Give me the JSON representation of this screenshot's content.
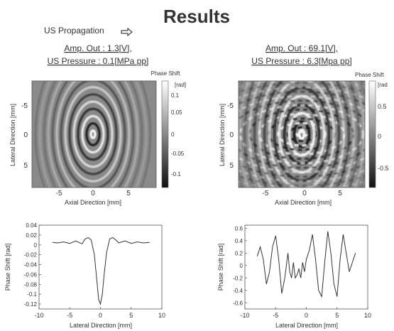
{
  "title": "Results",
  "propagation_label": "US Propagation",
  "panels": [
    {
      "amp_label": "Amp. Out : 1.3[V],",
      "pressure_label": "US Pressure : 0.1[MPa pp]",
      "colorbar": {
        "title": "Phase Shift",
        "unit": "[rad]",
        "ticks": [
          "0.1",
          "0.05",
          "0",
          "-0.05",
          "-0.1"
        ],
        "values": [
          0.1,
          0.05,
          0,
          -0.05,
          -0.1
        ]
      },
      "map": {
        "xlabel": "Axial Direction [mm]",
        "ylabel": "Lateral Direction [mm]",
        "xticks": [
          "-5",
          "0",
          "5"
        ],
        "yticks": [
          "-5",
          "0",
          "5"
        ]
      }
    },
    {
      "amp_label": "Amp. Out : 69.1[V],",
      "pressure_label": "US Pressure : 6.3[Mpa pp]",
      "colorbar": {
        "title": "Phase Shift",
        "unit": "[rad",
        "ticks": [
          "0.5",
          "0",
          "-0.5"
        ],
        "values": [
          0.5,
          0,
          -0.5
        ]
      },
      "map": {
        "xlabel": "Axial Direction [mm]",
        "ylabel": "Lateral Direction [mm]",
        "xticks": [
          "-5",
          "0",
          "5"
        ],
        "yticks": [
          "-5",
          "0",
          "5"
        ]
      }
    }
  ],
  "chart_data": [
    {
      "type": "line",
      "title": "",
      "xlabel": "Lateral Direction [mm]",
      "ylabel": "Phase Shift [rad]",
      "xlim": [
        -10,
        10
      ],
      "ylim": [
        -0.13,
        0.04
      ],
      "xticks": [
        "-10",
        "-5",
        "0",
        "5",
        "10"
      ],
      "yticks": [
        "0.04",
        "0.02",
        "0",
        "-0.02",
        "-0.04",
        "-0.06",
        "-0.08",
        "-0.1",
        "-0.12"
      ],
      "x": [
        -7.8,
        -7,
        -6,
        -5,
        -4,
        -3,
        -2.5,
        -2,
        -1.5,
        -1,
        -0.6,
        -0.3,
        0,
        0.3,
        0.6,
        1,
        1.5,
        2,
        2.5,
        3,
        4,
        5,
        6,
        7,
        8
      ],
      "y": [
        0.005,
        0.004,
        0.006,
        0.003,
        0.008,
        0.002,
        0.012,
        0.015,
        0.01,
        -0.02,
        -0.07,
        -0.11,
        -0.12,
        -0.1,
        -0.06,
        -0.015,
        0.012,
        0.015,
        0.01,
        0.004,
        0.008,
        0.003,
        0.006,
        0.004,
        0.005
      ]
    },
    {
      "type": "line",
      "title": "",
      "xlabel": "Lateral Direction [mm]",
      "ylabel": "Phase Shift [rad]",
      "xlim": [
        -10,
        10
      ],
      "ylim": [
        -0.7,
        0.65
      ],
      "xticks": [
        "-10",
        "-5",
        "0",
        "5",
        "10"
      ],
      "yticks": [
        "0.6",
        "0.4",
        "0.2",
        "0",
        "-0.2",
        "-0.4",
        "-0.6"
      ],
      "x": [
        -8,
        -7.5,
        -7,
        -6.5,
        -6,
        -5.5,
        -5,
        -4.5,
        -4,
        -3.5,
        -3,
        -2.7,
        -2.4,
        -2.1,
        -1.8,
        -1.5,
        -1.2,
        -0.9,
        -0.6,
        -0.3,
        0,
        0.5,
        1,
        1.5,
        2,
        2.5,
        3,
        3.5,
        4,
        4.5,
        5,
        5.5,
        6,
        6.5,
        7,
        7.5,
        8
      ],
      "y": [
        0.15,
        0.3,
        0.1,
        -0.3,
        -0.1,
        0.3,
        0.48,
        0.1,
        -0.45,
        -0.2,
        0.2,
        -0.1,
        -0.2,
        0.05,
        -0.2,
        -0.15,
        -0.05,
        -0.2,
        0.05,
        -0.1,
        0.1,
        0.25,
        0.5,
        0.1,
        -0.4,
        -0.5,
        0.05,
        0.55,
        0.2,
        -0.3,
        -0.5,
        0.1,
        0.5,
        0.2,
        -0.1,
        0.05,
        0.2
      ]
    }
  ]
}
